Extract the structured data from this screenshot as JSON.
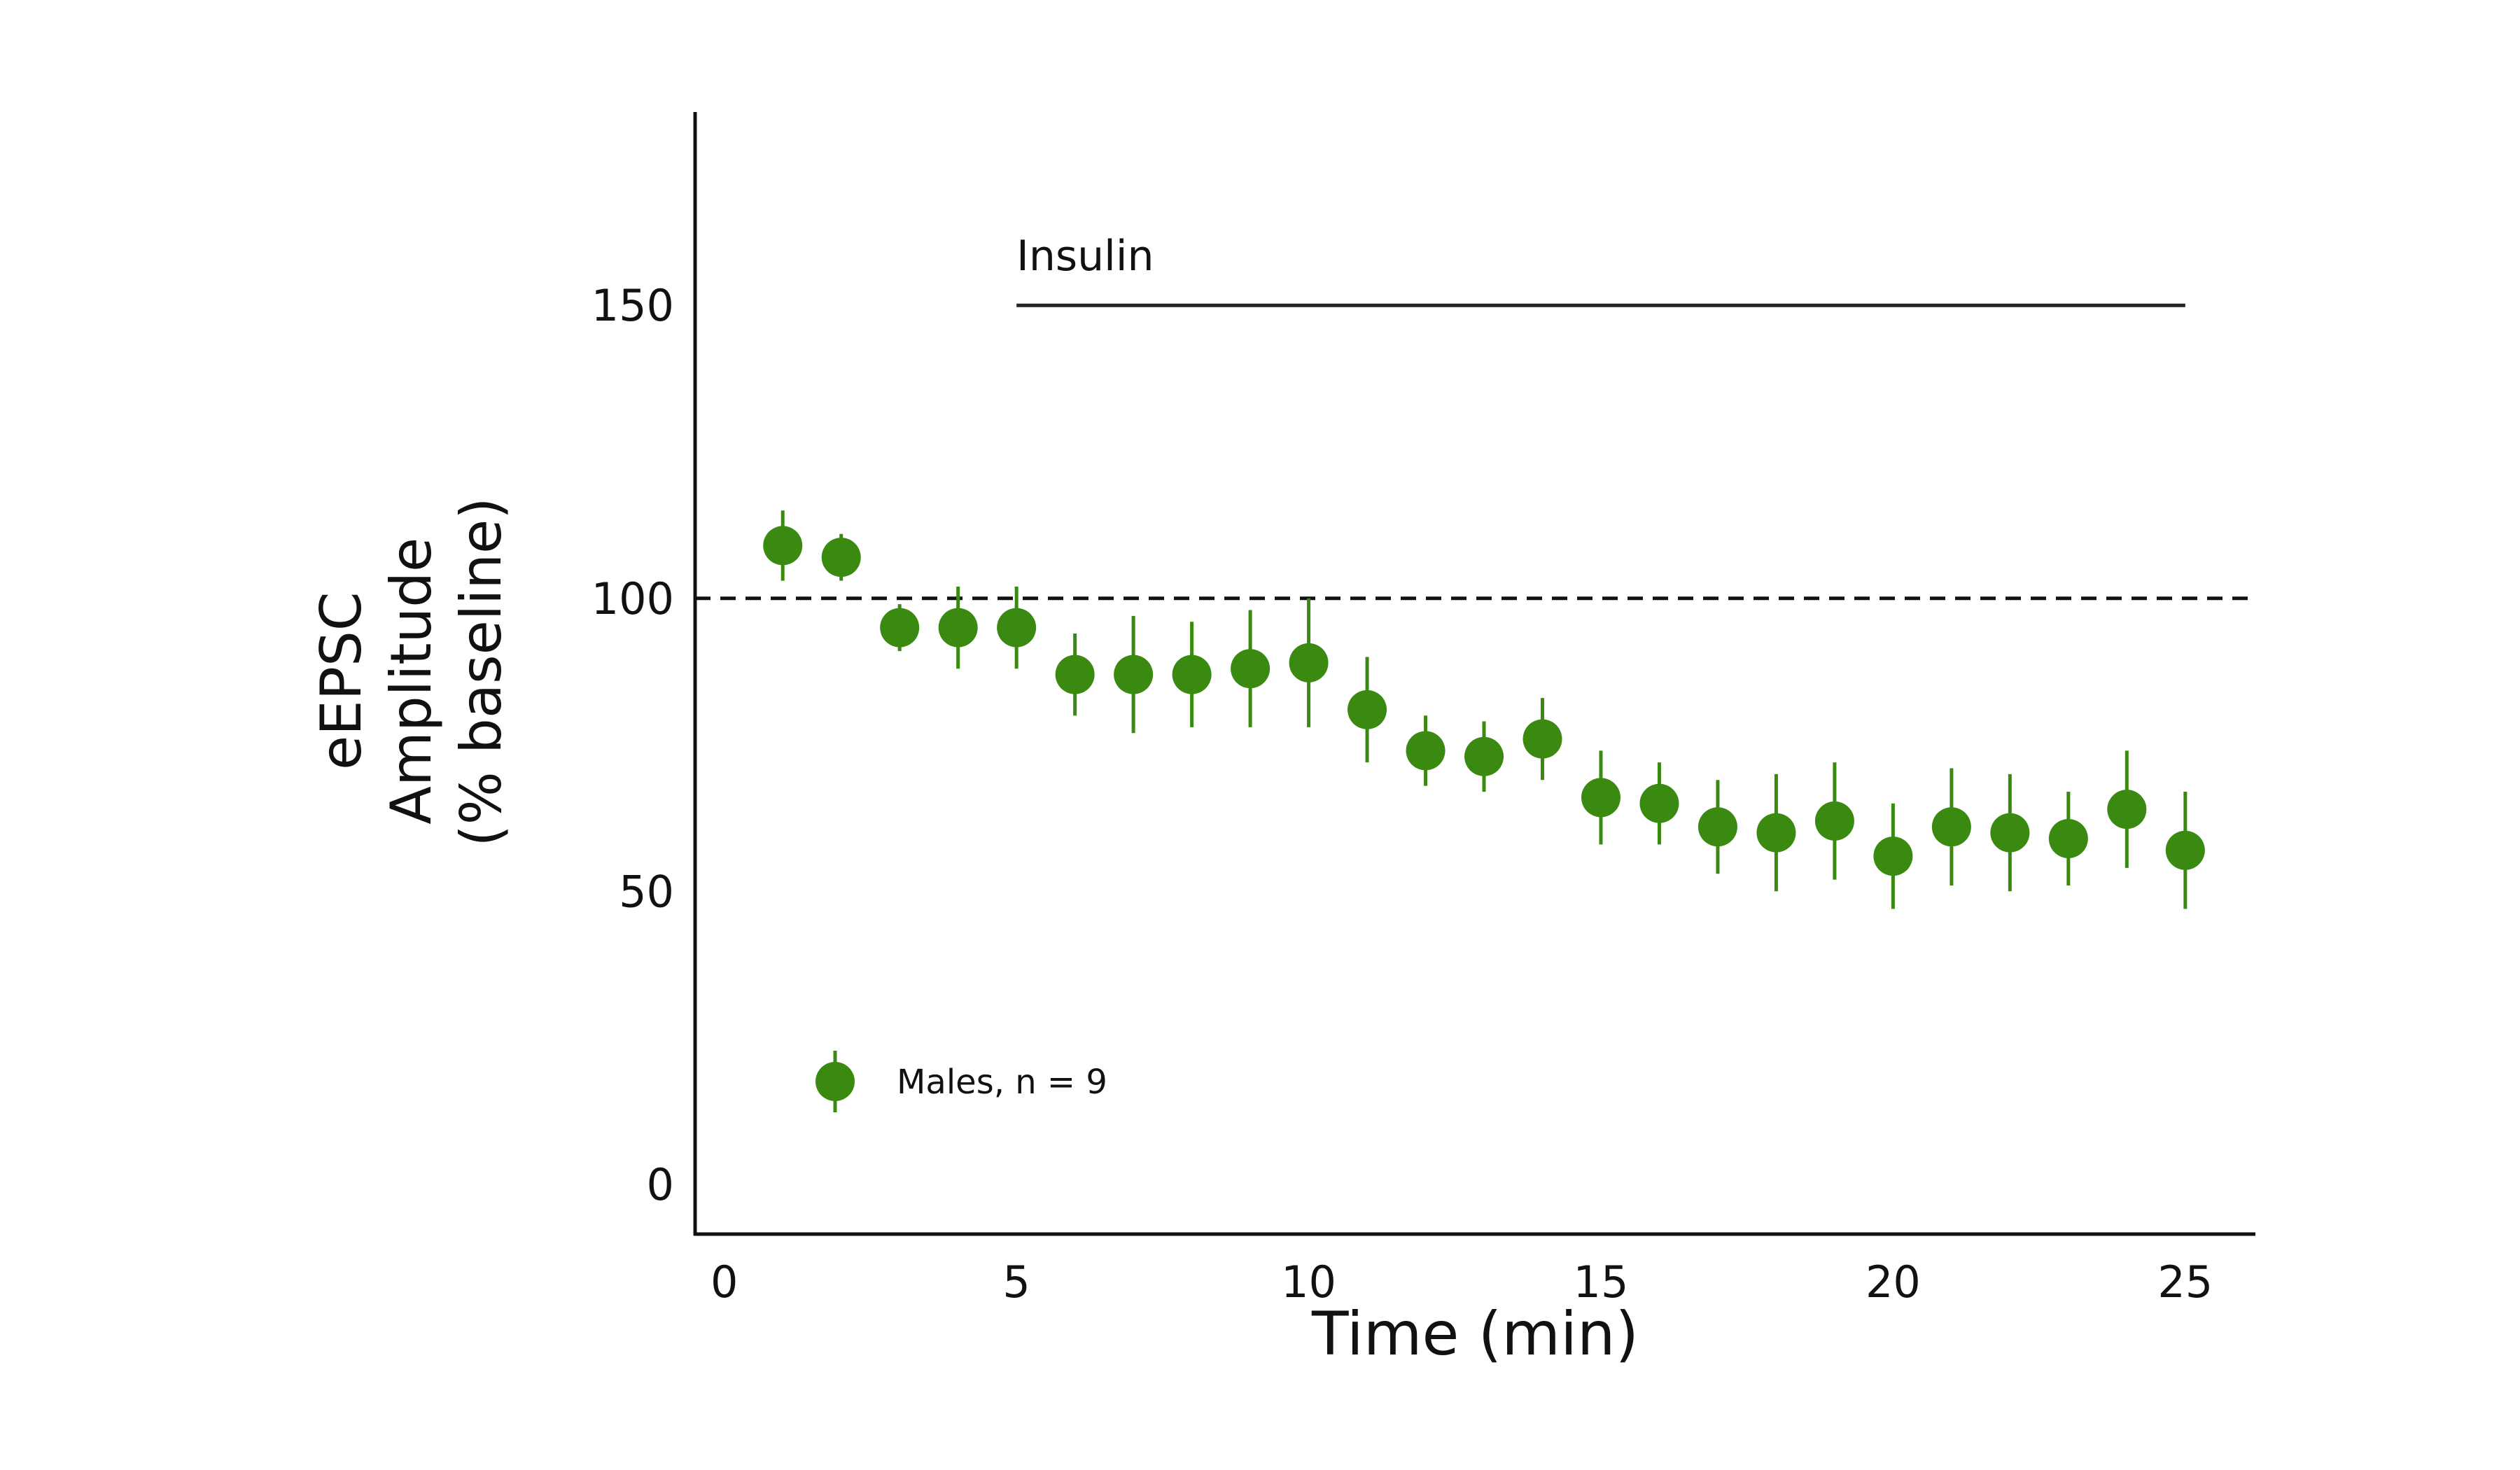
{
  "chart_data": {
    "type": "scatter",
    "xlabel": "Time (min)",
    "ylabel_lines": [
      "eEPSC",
      "Amplitude",
      "(% baseline)"
    ],
    "xlim": [
      -0.5,
      26.2
    ],
    "ylim": [
      -8.5,
      183
    ],
    "xticks": [
      0,
      5,
      10,
      15,
      20,
      25
    ],
    "yticks": [
      0,
      50,
      100,
      150
    ],
    "grid": false,
    "reference_line": {
      "y": 100,
      "style": "dashed"
    },
    "annotation": {
      "label": "Insulin",
      "x_start": 5,
      "x_end": 25,
      "y": 150
    },
    "legend": {
      "position": "bottom-left"
    },
    "series": [
      {
        "name": "Males, n = 9",
        "color": "#3a8a12",
        "points": [
          {
            "x": 1,
            "y": 109,
            "err": 6
          },
          {
            "x": 2,
            "y": 107,
            "err": 4
          },
          {
            "x": 3,
            "y": 95,
            "err": 4
          },
          {
            "x": 4,
            "y": 95,
            "err": 7
          },
          {
            "x": 5,
            "y": 95,
            "err": 7
          },
          {
            "x": 6,
            "y": 87,
            "err": 7
          },
          {
            "x": 7,
            "y": 87,
            "err": 10
          },
          {
            "x": 8,
            "y": 87,
            "err": 9
          },
          {
            "x": 9,
            "y": 88,
            "err": 10
          },
          {
            "x": 10,
            "y": 89,
            "err": 11
          },
          {
            "x": 11,
            "y": 81,
            "err": 9
          },
          {
            "x": 12,
            "y": 74,
            "err": 6
          },
          {
            "x": 13,
            "y": 73,
            "err": 6
          },
          {
            "x": 14,
            "y": 76,
            "err": 7
          },
          {
            "x": 15,
            "y": 66,
            "err": 8
          },
          {
            "x": 16,
            "y": 65,
            "err": 7
          },
          {
            "x": 17,
            "y": 61,
            "err": 8
          },
          {
            "x": 18,
            "y": 60,
            "err": 10
          },
          {
            "x": 19,
            "y": 62,
            "err": 10
          },
          {
            "x": 20,
            "y": 56,
            "err": 9
          },
          {
            "x": 21,
            "y": 61,
            "err": 10
          },
          {
            "x": 22,
            "y": 60,
            "err": 10
          },
          {
            "x": 23,
            "y": 59,
            "err": 8
          },
          {
            "x": 24,
            "y": 64,
            "err": 10
          },
          {
            "x": 25,
            "y": 57,
            "err": 10
          }
        ]
      }
    ]
  }
}
